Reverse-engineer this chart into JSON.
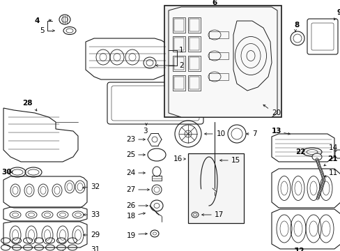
{
  "background_color": "#ffffff",
  "line_color": "#1a1a1a",
  "parts_label_fontsize": 7.5,
  "fig_w": 4.89,
  "fig_h": 3.6,
  "dpi": 100
}
